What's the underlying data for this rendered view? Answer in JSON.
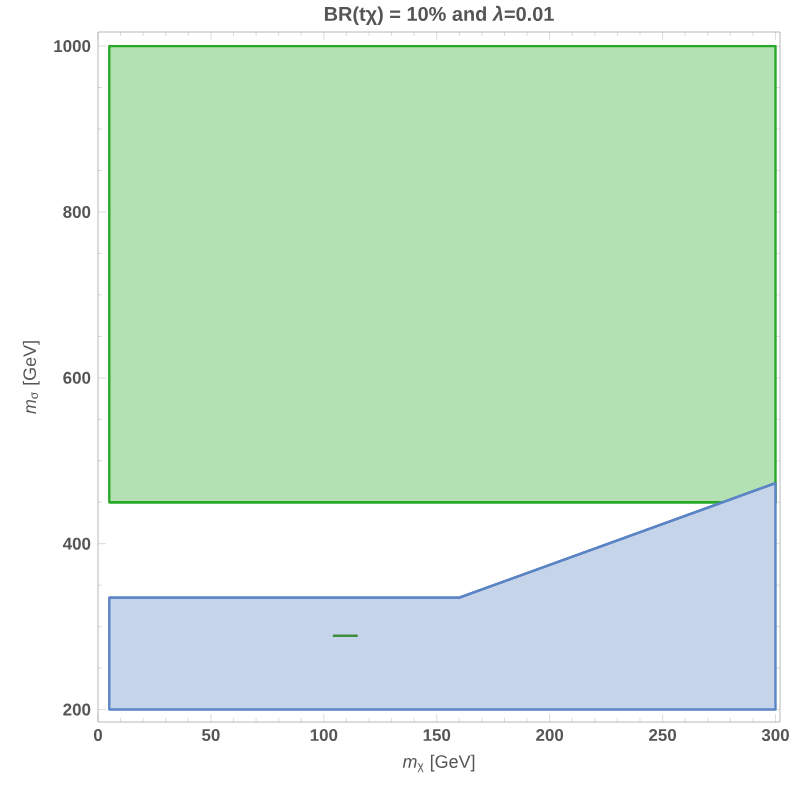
{
  "chart_data": {
    "type": "line",
    "title": "BR(tχ) = 10% and *λ*=0.01",
    "xlabel": "*m*$_{χ}$ [GeV]",
    "ylabel": "*m*$_{σ}$ [GeV]",
    "xlim": [
      0,
      302
    ],
    "ylim": [
      185,
      1017
    ],
    "xticks": [
      0,
      50,
      100,
      150,
      200,
      250,
      300
    ],
    "yticks": [
      200,
      400,
      600,
      800,
      1000
    ],
    "series": [
      {
        "color": "#28a828",
        "x": [
          5,
          278,
          300
        ],
        "values": [
          450,
          450,
          null
        ],
        "lower": [
          450,
          450,
          450
        ],
        "upper": [
          1000,
          1000,
          1000
        ]
      },
      {
        "color": "#5b84c4",
        "x": [
          5,
          160,
          300
        ],
        "values": [
          335,
          335,
          473
        ],
        "lower": [
          200,
          200,
          200
        ],
        "upper": [
          335,
          335,
          473
        ]
      },
      {
        "color": "#3a8a3a",
        "x": [
          104,
          115
        ],
        "values": [
          289,
          289
        ]
      }
    ]
  }
}
